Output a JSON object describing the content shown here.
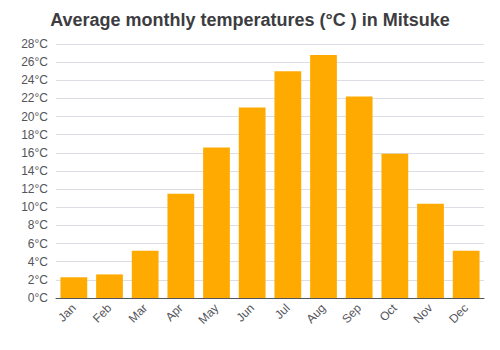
{
  "chart_data": {
    "type": "bar",
    "title": "Average monthly temperatures (°C ) in Mitsuke",
    "categories": [
      "Jan",
      "Feb",
      "Mar",
      "Apr",
      "May",
      "Jun",
      "Jul",
      "Aug",
      "Sep",
      "Oct",
      "Nov",
      "Dec"
    ],
    "values": [
      2.3,
      2.6,
      5.2,
      11.5,
      16.6,
      21.0,
      25.0,
      26.8,
      22.2,
      15.9,
      10.4,
      5.2
    ],
    "color": "#FFAA00",
    "ylim": [
      0,
      28
    ],
    "yticks": [
      {
        "value": 0,
        "label": "0°C"
      },
      {
        "value": 2,
        "label": "2°C"
      },
      {
        "value": 4,
        "label": "4°C"
      },
      {
        "value": 6,
        "label": "6°C"
      },
      {
        "value": 8,
        "label": "8°C"
      },
      {
        "value": 10,
        "label": "10°C"
      },
      {
        "value": 12,
        "label": "12°C"
      },
      {
        "value": 14,
        "label": "14°C"
      },
      {
        "value": 16,
        "label": "16°C"
      },
      {
        "value": 18,
        "label": "18°C"
      },
      {
        "value": 20,
        "label": "20°C"
      },
      {
        "value": 22,
        "label": "22°C"
      },
      {
        "value": 24,
        "label": "24°C"
      },
      {
        "value": 26,
        "label": "26°C"
      },
      {
        "value": 28,
        "label": "28°C"
      }
    ],
    "grid": true
  }
}
